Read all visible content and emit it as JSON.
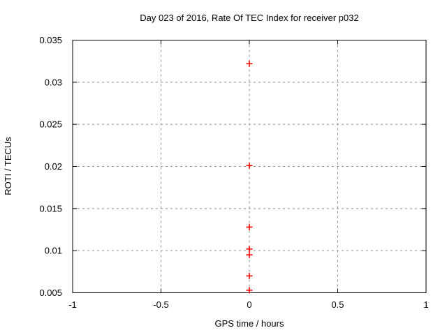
{
  "chart": {
    "title": "Day 023 of 2016, Rate Of TEC Index for receiver p032",
    "xlabel": "GPS time / hours",
    "ylabel": "ROTI / TECUs"
  },
  "chart_data": {
    "type": "scatter",
    "title": "Day 023 of 2016, Rate Of TEC Index for receiver p032",
    "xlabel": "GPS time / hours",
    "ylabel": "ROTI / TECUs",
    "xlim": [
      -1,
      1
    ],
    "ylim": [
      0.005,
      0.035
    ],
    "grid": true,
    "legend": "none",
    "x_ticks": [
      {
        "value": -1,
        "label": "-1"
      },
      {
        "value": -0.5,
        "label": "-0.5"
      },
      {
        "value": 0,
        "label": "0"
      },
      {
        "value": 0.5,
        "label": "0.5"
      },
      {
        "value": 1,
        "label": "1"
      }
    ],
    "y_ticks": [
      {
        "value": 0.005,
        "label": "0.005"
      },
      {
        "value": 0.01,
        "label": "0.01"
      },
      {
        "value": 0.015,
        "label": "0.015"
      },
      {
        "value": 0.02,
        "label": "0.02"
      },
      {
        "value": 0.025,
        "label": "0.025"
      },
      {
        "value": 0.03,
        "label": "0.03"
      },
      {
        "value": 0.035,
        "label": "0.035"
      }
    ],
    "series": [
      {
        "name": "ROTI",
        "marker": "plus",
        "points": [
          {
            "x": 0,
            "y": 0.0322
          },
          {
            "x": 0,
            "y": 0.0201
          },
          {
            "x": 0,
            "y": 0.0128
          },
          {
            "x": 0,
            "y": 0.0102
          },
          {
            "x": 0,
            "y": 0.0095
          },
          {
            "x": 0,
            "y": 0.007
          },
          {
            "x": 0,
            "y": 0.0053
          }
        ]
      }
    ],
    "colors": {
      "marker": "#ff0000",
      "grid": "#8c8c8c",
      "border": "#000000",
      "text": "#000000",
      "background": "#ffffff"
    }
  }
}
